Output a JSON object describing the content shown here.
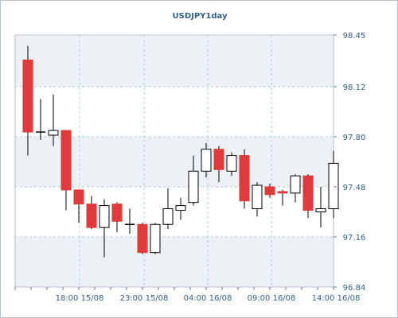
{
  "chart_data": {
    "type": "candlestick",
    "title": "USDJPY1day",
    "y_ticks": [
      "98.45",
      "98.12",
      "97.80",
      "97.48",
      "97.16",
      "96.84"
    ],
    "ylim": [
      96.84,
      98.45
    ],
    "x_ticks": [
      "18:00 15/08",
      "23:00 15/08",
      "04:00 16/08",
      "09:00 16/08",
      "14:00 16/08"
    ],
    "grid": true,
    "colors": {
      "up": "#ffffff",
      "down": "#e03a3a",
      "wick": "#000000",
      "grid": "#9fd3dc",
      "band": "#edf0f4",
      "text": "#335f8a"
    },
    "candles": [
      {
        "open": 98.29,
        "high": 98.38,
        "low": 97.68,
        "close": 97.83
      },
      {
        "open": 97.83,
        "high": 98.04,
        "low": 97.78,
        "close": 97.83
      },
      {
        "open": 97.81,
        "high": 98.07,
        "low": 97.74,
        "close": 97.84
      },
      {
        "open": 97.84,
        "high": 97.84,
        "low": 97.33,
        "close": 97.46
      },
      {
        "open": 97.46,
        "high": 97.46,
        "low": 97.25,
        "close": 97.37
      },
      {
        "open": 97.37,
        "high": 97.42,
        "low": 97.21,
        "close": 97.22
      },
      {
        "open": 97.22,
        "high": 97.4,
        "low": 97.03,
        "close": 97.36
      },
      {
        "open": 97.37,
        "high": 97.38,
        "low": 97.19,
        "close": 97.26
      },
      {
        "open": 97.24,
        "high": 97.34,
        "low": 97.18,
        "close": 97.24
      },
      {
        "open": 97.24,
        "high": 97.25,
        "low": 97.05,
        "close": 97.06
      },
      {
        "open": 97.06,
        "high": 97.25,
        "low": 97.05,
        "close": 97.24
      },
      {
        "open": 97.24,
        "high": 97.47,
        "low": 97.21,
        "close": 97.34
      },
      {
        "open": 97.33,
        "high": 97.41,
        "low": 97.27,
        "close": 97.36
      },
      {
        "open": 97.38,
        "high": 97.68,
        "low": 97.36,
        "close": 97.58
      },
      {
        "open": 97.58,
        "high": 97.76,
        "low": 97.54,
        "close": 97.72
      },
      {
        "open": 97.72,
        "high": 97.74,
        "low": 97.51,
        "close": 97.59
      },
      {
        "open": 97.58,
        "high": 97.7,
        "low": 97.55,
        "close": 97.68
      },
      {
        "open": 97.68,
        "high": 97.72,
        "low": 97.34,
        "close": 97.39
      },
      {
        "open": 97.34,
        "high": 97.51,
        "low": 97.29,
        "close": 97.49
      },
      {
        "open": 97.48,
        "high": 97.5,
        "low": 97.41,
        "close": 97.43
      },
      {
        "open": 97.45,
        "high": 97.46,
        "low": 97.36,
        "close": 97.44
      },
      {
        "open": 97.44,
        "high": 97.56,
        "low": 97.38,
        "close": 97.55
      },
      {
        "open": 97.55,
        "high": 97.56,
        "low": 97.28,
        "close": 97.33
      },
      {
        "open": 97.32,
        "high": 97.48,
        "low": 97.22,
        "close": 97.34
      },
      {
        "open": 97.34,
        "high": 97.71,
        "low": 97.28,
        "close": 97.63
      }
    ]
  }
}
